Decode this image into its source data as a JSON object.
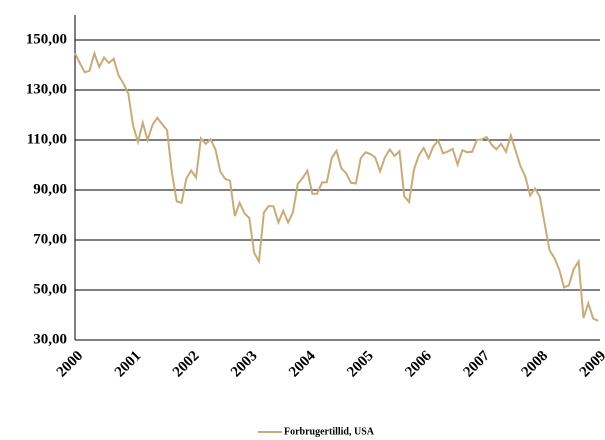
{
  "chart_data": {
    "type": "line",
    "categories": [
      "2000",
      null,
      null,
      null,
      null,
      null,
      null,
      null,
      null,
      null,
      null,
      null,
      "2001",
      null,
      null,
      null,
      null,
      null,
      null,
      null,
      null,
      null,
      null,
      null,
      "2002",
      null,
      null,
      null,
      null,
      null,
      null,
      null,
      null,
      null,
      null,
      null,
      "2003",
      null,
      null,
      null,
      null,
      null,
      null,
      null,
      null,
      null,
      null,
      null,
      "2004",
      null,
      null,
      null,
      null,
      null,
      null,
      null,
      null,
      null,
      null,
      null,
      "2005",
      null,
      null,
      null,
      null,
      null,
      null,
      null,
      null,
      null,
      null,
      null,
      "2006",
      null,
      null,
      null,
      null,
      null,
      null,
      null,
      null,
      null,
      null,
      null,
      "2007",
      null,
      null,
      null,
      null,
      null,
      null,
      null,
      null,
      null,
      null,
      null,
      "2008",
      null,
      null,
      null,
      null,
      null,
      null,
      null,
      null,
      null,
      null,
      null,
      "2009"
    ],
    "series": [
      {
        "name": "Forbrugertillid, USA",
        "color": "#c9ab7a",
        "values": [
          144.7,
          140.8,
          137.1,
          137.7,
          144.7,
          139.2,
          143.0,
          140.8,
          142.5,
          135.8,
          132.6,
          128.6,
          115.7,
          109.2,
          116.9,
          109.9,
          116.1,
          118.9,
          116.3,
          114.0,
          97.0,
          85.5,
          84.9,
          94.6,
          97.8,
          95.0,
          110.7,
          108.5,
          110.3,
          106.3,
          97.4,
          94.5,
          93.7,
          79.6,
          84.9,
          80.7,
          78.8,
          64.8,
          61.4,
          81.0,
          83.6,
          83.5,
          77.0,
          81.7,
          77.0,
          81.1,
          92.5,
          94.8,
          97.7,
          88.5,
          88.5,
          93.0,
          93.1,
          102.8,
          105.7,
          98.7,
          96.7,
          92.9,
          92.6,
          102.7,
          105.1,
          104.4,
          103.0,
          97.5,
          103.1,
          106.2,
          103.6,
          105.5,
          87.5,
          85.2,
          98.3,
          103.8,
          106.8,
          102.7,
          107.5,
          109.8,
          104.7,
          105.4,
          106.5,
          100.2,
          105.9,
          105.1,
          105.3,
          110.0,
          110.2,
          111.2,
          108.2,
          106.3,
          108.5,
          105.3,
          111.9,
          105.6,
          99.5,
          95.2,
          87.8,
          90.6,
          87.3,
          76.4,
          65.9,
          62.8,
          58.1,
          51.0,
          51.9,
          58.5,
          61.4,
          38.8,
          44.7,
          38.6,
          37.7
        ]
      }
    ],
    "ylim": [
      30,
      160
    ],
    "yticks": [
      {
        "value": 30,
        "label": "30,00"
      },
      {
        "value": 50,
        "label": "50,00"
      },
      {
        "value": 70,
        "label": "70,00"
      },
      {
        "value": 90,
        "label": "90,00"
      },
      {
        "value": 110,
        "label": "110,00"
      },
      {
        "value": 130,
        "label": "130,00"
      },
      {
        "value": 150,
        "label": "150,00"
      }
    ],
    "grid": true,
    "legend": "bottom"
  }
}
